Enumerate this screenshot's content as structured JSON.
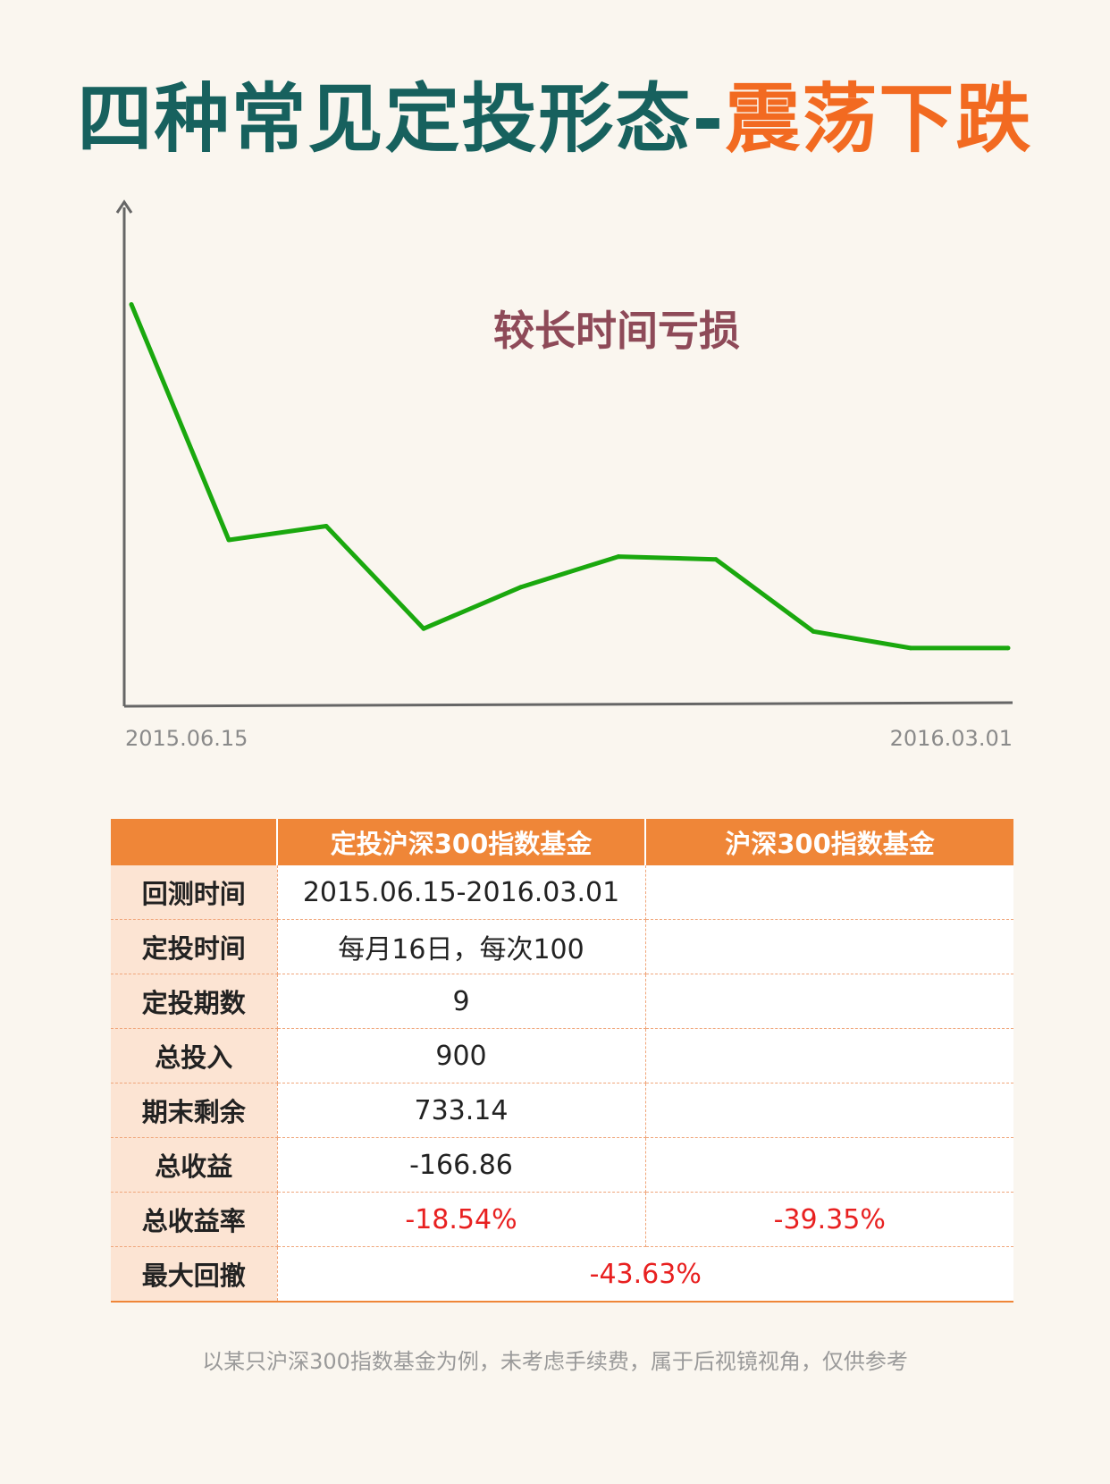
{
  "title": {
    "part1": "四种常见定投形态-",
    "part2": "震荡下跌"
  },
  "chart_data": {
    "type": "line",
    "annotation": "较长时间亏损",
    "x_start_label": "2015.06.15",
    "x_end_label": "2016.03.01",
    "series": [
      {
        "values": [
          3.95,
          3.1,
          3.15,
          2.78,
          2.93,
          3.04,
          3.03,
          2.77,
          2.71,
          2.71
        ]
      }
    ],
    "ylim": [
      2.5,
      4.3
    ],
    "grid": false,
    "color": "#1aa80e"
  },
  "table": {
    "headers": [
      "",
      "定投沪深300指数基金",
      "沪深300指数基金"
    ],
    "rows": [
      {
        "label": "回测时间",
        "v1": "2015.06.15-2016.03.01",
        "v2": ""
      },
      {
        "label": "定投时间",
        "v1": "每月16日，每次100",
        "v2": ""
      },
      {
        "label": "定投期数",
        "v1": "9",
        "v2": ""
      },
      {
        "label": "总投入",
        "v1": "900",
        "v2": ""
      },
      {
        "label": "期末剩余",
        "v1": "733.14",
        "v2": ""
      },
      {
        "label": "总收益",
        "v1": "-166.86",
        "v2": ""
      },
      {
        "label": "总收益率",
        "v1": "-18.54%",
        "v2": "-39.35%"
      },
      {
        "label": "最大回撤",
        "merged": "-43.63%"
      }
    ]
  },
  "footnote": "以某只沪深300指数基金为例，未考虑手续费，属于后视镜视角，仅供参考"
}
